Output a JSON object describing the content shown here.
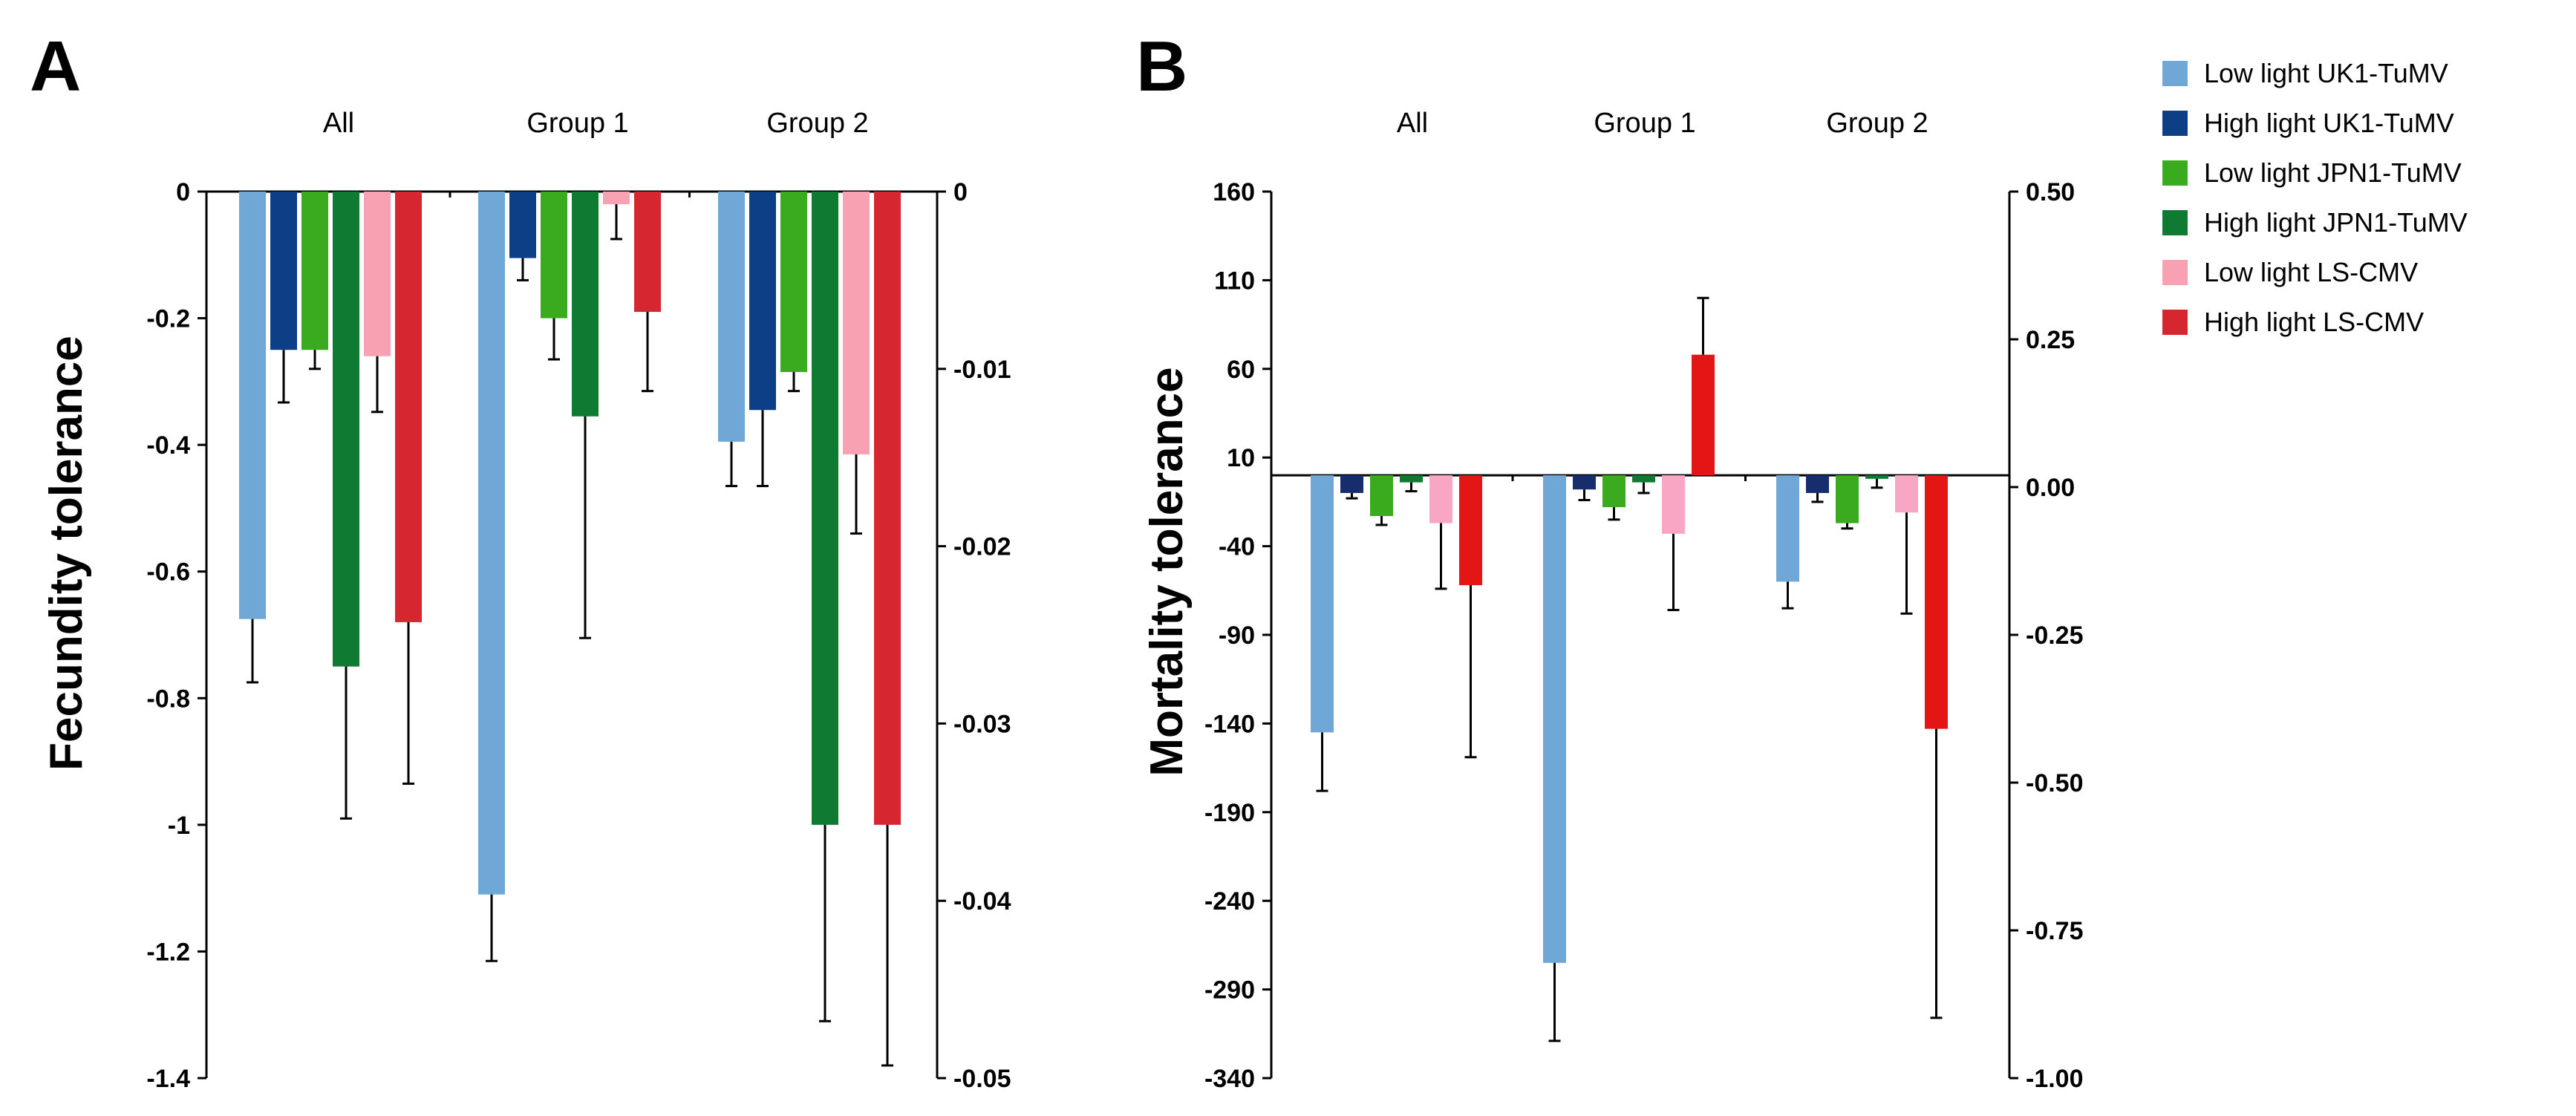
{
  "colors": {
    "low_uk1": "#6fa8d6",
    "high_uk1": "#0c3f86",
    "low_jpn1": "#3aaa1e",
    "high_jpn1": "#0f7a32",
    "low_ls_a": "#f7a1b3",
    "high_ls_a": "#d62730",
    "high_uk1_b": "#172e6e",
    "low_ls_b": "#f9a6c4",
    "high_ls_b": "#e31515"
  },
  "legend": [
    {
      "label": "Low light UK1-TuMV",
      "color": "#6fa8d6"
    },
    {
      "label": "High light UK1-TuMV",
      "color": "#0c3f86"
    },
    {
      "label": "Low light JPN1-TuMV",
      "color": "#3aaa1e"
    },
    {
      "label": "High light JPN1-TuMV",
      "color": "#0f7a32"
    },
    {
      "label": "Low light LS-CMV",
      "color": "#f7a1b3"
    },
    {
      "label": "High light LS-CMV",
      "color": "#d62730"
    }
  ],
  "chart_data": [
    {
      "panel": "A",
      "type": "bar",
      "ylabel": "Fecundity tolerance",
      "ylim": [
        -1.4,
        0
      ],
      "yticks": [
        "0",
        "-0.2",
        "-0.4",
        "-0.6",
        "-0.8",
        "-1",
        "-1.2",
        "-1.4"
      ],
      "y2lim": [
        -0.05,
        0
      ],
      "y2ticks": [
        "0",
        "-0.01",
        "-0.02",
        "-0.03",
        "-0.04",
        "-0.05"
      ],
      "categories": [
        "All",
        "Group 1",
        "Group 2"
      ],
      "series": [
        {
          "name": "Low light UK1-TuMV",
          "values": [
            -0.675,
            -1.11,
            -0.395
          ],
          "errors": [
            0.1,
            0.105,
            0.07
          ]
        },
        {
          "name": "High light UK1-TuMV",
          "values": [
            -0.25,
            -0.105,
            -0.345
          ],
          "errors": [
            0.083,
            0.035,
            0.12
          ]
        },
        {
          "name": "Low light JPN1-TuMV",
          "values": [
            -0.25,
            -0.2,
            -0.285
          ],
          "errors": [
            0.03,
            0.065,
            0.03
          ]
        },
        {
          "name": "High light JPN1-TuMV",
          "values": [
            -0.75,
            -0.355,
            -1.0
          ],
          "errors": [
            0.24,
            0.35,
            0.31
          ]
        },
        {
          "name": "Low light LS-CMV",
          "values": [
            -0.26,
            -0.02,
            -0.415
          ],
          "errors": [
            0.088,
            0.055,
            0.125
          ]
        },
        {
          "name": "High light LS-CMV",
          "values": [
            -0.68,
            -0.19,
            -1.0
          ],
          "errors": [
            0.255,
            0.125,
            0.38
          ]
        }
      ]
    },
    {
      "panel": "B",
      "type": "bar",
      "ylabel": "Mortality tolerance",
      "ylim": [
        -340,
        160
      ],
      "yticks": [
        "160",
        "110",
        "60",
        "10",
        "-40",
        "-90",
        "-140",
        "-190",
        "-240",
        "-290",
        "-340"
      ],
      "y2lim": [
        -1.0,
        0.5
      ],
      "y2ticks": [
        "0.50",
        "0.25",
        "0.00",
        "-0.25",
        "-0.50",
        "-0.75",
        "-1.00"
      ],
      "categories": [
        "All",
        "Group 1",
        "Group 2"
      ],
      "series": [
        {
          "name": "Low light UK1-TuMV",
          "values": [
            -145,
            -275,
            -60
          ],
          "errors": [
            33,
            44,
            15
          ]
        },
        {
          "name": "High light UK1-TuMV",
          "values": [
            -10,
            -8,
            -10
          ],
          "errors": [
            3,
            6,
            5
          ]
        },
        {
          "name": "Low light JPN1-TuMV",
          "values": [
            -23,
            -18,
            -27
          ],
          "errors": [
            5,
            7,
            3
          ]
        },
        {
          "name": "High light JPN1-TuMV",
          "values": [
            -4,
            -4,
            -2
          ],
          "errors": [
            5,
            6,
            5
          ]
        },
        {
          "name": "Low light LS-CMV",
          "values": [
            -27,
            -33,
            -21
          ],
          "errors": [
            37,
            43,
            57
          ]
        },
        {
          "name": "High light LS-CMV",
          "values": [
            -62,
            68,
            -143
          ],
          "errors": [
            97,
            32,
            163
          ]
        }
      ]
    }
  ]
}
